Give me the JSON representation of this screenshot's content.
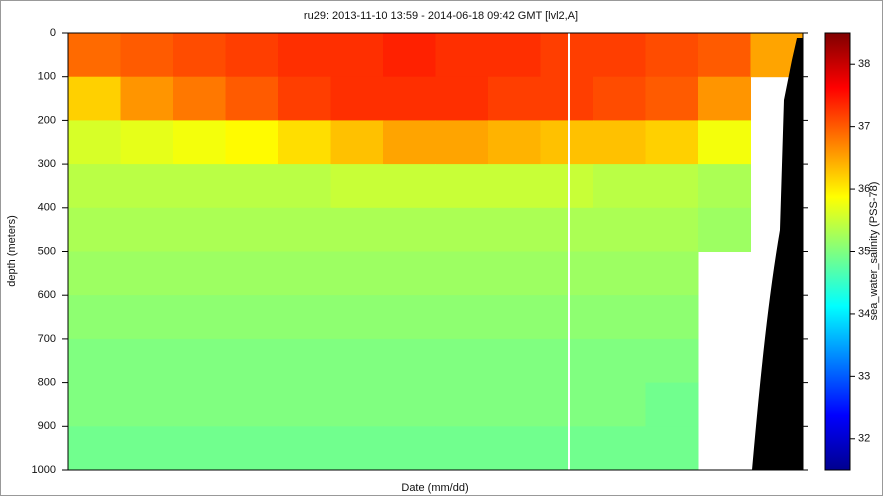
{
  "chart_data": {
    "type": "heatmap",
    "title": "ru29: 2013-11-10 13:59 - 2014-06-18 09:42 GMT [lvl2,A]",
    "x_label": "Date (mm/dd)",
    "y_label": "depth (meters)",
    "colorbar_label": "sea_water_salinity (PSS-78)",
    "colormap": "jet",
    "ylim": [
      0,
      1000
    ],
    "yticks": [
      0,
      100,
      200,
      300,
      400,
      500,
      600,
      700,
      800,
      900,
      1000
    ],
    "y_reversed": true,
    "clim": [
      31.5,
      38.5
    ],
    "cticks": [
      32,
      33,
      34,
      35,
      36,
      37,
      38
    ],
    "categories": [
      null,
      null,
      null,
      null,
      null,
      null,
      null,
      null,
      null,
      null,
      null,
      null,
      null,
      null
    ],
    "depth_bins": [
      0,
      100,
      200,
      300,
      400,
      500,
      600,
      700,
      800,
      900,
      1000
    ],
    "values": [
      [
        36.9,
        37.0,
        37.1,
        37.2,
        37.3,
        37.3,
        37.4,
        37.3,
        37.3,
        37.2,
        37.2,
        37.1,
        37.0,
        36.5
      ],
      [
        36.2,
        36.6,
        36.8,
        37.0,
        37.2,
        37.3,
        37.3,
        37.3,
        37.2,
        37.2,
        37.1,
        37.0,
        36.6,
        null
      ],
      [
        35.6,
        35.7,
        35.8,
        35.9,
        36.1,
        36.3,
        36.5,
        36.5,
        36.4,
        36.3,
        36.3,
        36.2,
        35.8,
        null
      ],
      [
        35.4,
        35.4,
        35.4,
        35.4,
        35.4,
        35.5,
        35.5,
        35.5,
        35.5,
        35.5,
        35.4,
        35.4,
        35.3,
        null
      ],
      [
        35.3,
        35.3,
        35.3,
        35.3,
        35.3,
        35.3,
        35.3,
        35.3,
        35.3,
        35.3,
        35.3,
        35.3,
        35.2,
        null
      ],
      [
        35.2,
        35.2,
        35.2,
        35.2,
        35.2,
        35.2,
        35.2,
        35.2,
        35.2,
        35.2,
        35.2,
        35.2,
        null,
        null
      ],
      [
        35.1,
        35.1,
        35.1,
        35.1,
        35.1,
        35.1,
        35.1,
        35.1,
        35.1,
        35.1,
        35.1,
        35.1,
        null,
        null
      ],
      [
        35.0,
        35.0,
        35.0,
        35.0,
        35.0,
        35.0,
        35.0,
        35.0,
        35.0,
        35.0,
        35.0,
        35.0,
        null,
        null
      ],
      [
        35.0,
        35.0,
        35.0,
        35.0,
        35.0,
        35.0,
        35.0,
        35.0,
        35.0,
        35.0,
        35.0,
        34.9,
        null,
        null
      ],
      [
        34.9,
        34.9,
        34.9,
        34.9,
        34.9,
        34.9,
        34.9,
        34.9,
        34.9,
        34.9,
        34.9,
        34.9,
        null,
        null
      ]
    ]
  }
}
